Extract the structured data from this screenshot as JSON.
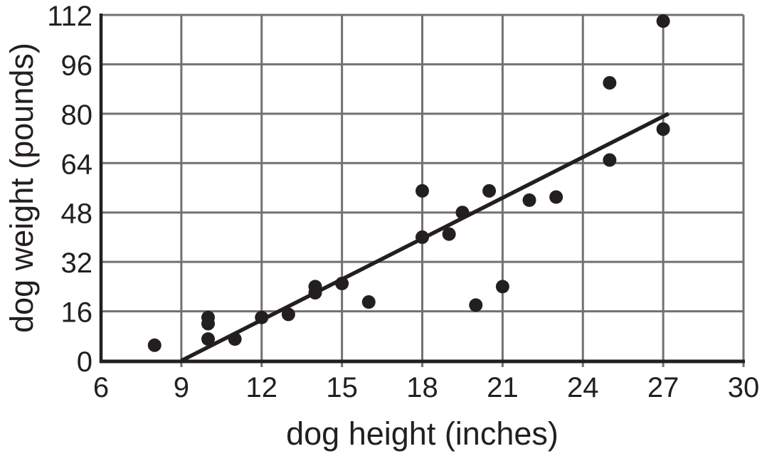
{
  "chart_data": {
    "type": "scatter",
    "xlabel": "dog height (inches)",
    "ylabel": "dog weight (pounds)",
    "xlim": [
      6,
      30
    ],
    "ylim": [
      0,
      112
    ],
    "xticks": [
      6,
      9,
      12,
      15,
      18,
      21,
      24,
      27,
      30
    ],
    "yticks": [
      0,
      16,
      32,
      48,
      64,
      80,
      96,
      112
    ],
    "grid": true,
    "legend": false,
    "points": [
      [
        8,
        5
      ],
      [
        10,
        7
      ],
      [
        10,
        12
      ],
      [
        10,
        14
      ],
      [
        11,
        7
      ],
      [
        12,
        14
      ],
      [
        13,
        15
      ],
      [
        14,
        22
      ],
      [
        14,
        24
      ],
      [
        15,
        25
      ],
      [
        16,
        19
      ],
      [
        18,
        40
      ],
      [
        18,
        55
      ],
      [
        19,
        41
      ],
      [
        19.5,
        48
      ],
      [
        20,
        18
      ],
      [
        20.5,
        55
      ],
      [
        21,
        24
      ],
      [
        22,
        52
      ],
      [
        23,
        53
      ],
      [
        25,
        65
      ],
      [
        25,
        90
      ],
      [
        27,
        75
      ],
      [
        27,
        110
      ]
    ],
    "trend_line": {
      "x1": 9,
      "y1": 0,
      "x2": 27.2,
      "y2": 80,
      "slope_approx": 4.4
    },
    "colors": {
      "background": "#ffffff",
      "grid": "#717175",
      "axis": "#231f20",
      "point": "#231f20",
      "trend": "#231f20",
      "text": "#231f20"
    }
  }
}
